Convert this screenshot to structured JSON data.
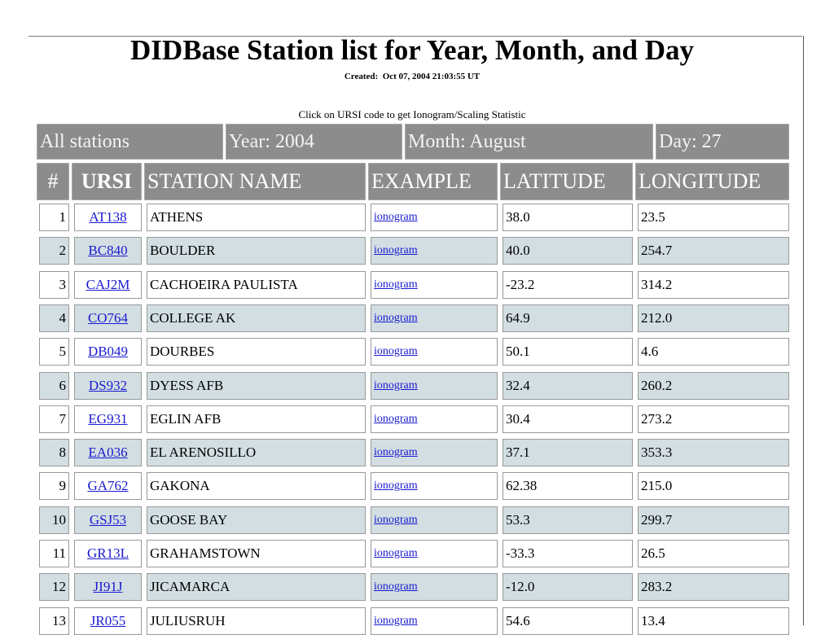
{
  "header": {
    "title": "DIDBase Station list for Year, Month, and Day",
    "created_label": "Created:",
    "created": "Oct 07, 2004 21:03:55 UT",
    "instructions": "Click on URSI code to get Ionogram/Scaling Statistic"
  },
  "table": {
    "filters": [
      "All stations",
      "Year: 2004",
      "Month: August",
      "Day: 27"
    ],
    "columns": [
      "#",
      "URSI",
      "STATION NAME",
      "EXAMPLE",
      "LATITUDE",
      "LONGITUDE"
    ],
    "rows": [
      [
        "1",
        "AT138",
        "ATHENS",
        "ionogram",
        "38.0",
        "23.5"
      ],
      [
        "2",
        "BC840",
        "BOULDER",
        "ionogram",
        "40.0",
        "254.7"
      ],
      [
        "3",
        "CAJ2M",
        "CACHOEIRA PAULISTA",
        "ionogram",
        "-23.2",
        "314.2"
      ],
      [
        "4",
        "CO764",
        "COLLEGE AK",
        "ionogram",
        "64.9",
        "212.0"
      ],
      [
        "5",
        "DB049",
        "DOURBES",
        "ionogram",
        "50.1",
        "4.6"
      ],
      [
        "6",
        "DS932",
        "DYESS AFB",
        "ionogram",
        "32.4",
        "260.2"
      ],
      [
        "7",
        "EG931",
        "EGLIN AFB",
        "ionogram",
        "30.4",
        "273.2"
      ],
      [
        "8",
        "EA036",
        "EL ARENOSILLO",
        "ionogram",
        "37.1",
        "353.3"
      ],
      [
        "9",
        "GA762",
        "GAKONA",
        "ionogram",
        "62.38",
        "215.0"
      ],
      [
        "10",
        "GSJ53",
        "GOOSE BAY",
        "ionogram",
        "53.3",
        "299.7"
      ],
      [
        "11",
        "GR13L",
        "GRAHAMSTOWN",
        "ionogram",
        "-33.3",
        "26.5"
      ],
      [
        "12",
        "JI91J",
        "JICAMARCA",
        "ionogram",
        "-12.0",
        "283.2"
      ],
      [
        "13",
        "JR055",
        "JULIUSRUH",
        "ionogram",
        "54.6",
        "13.4"
      ]
    ]
  }
}
